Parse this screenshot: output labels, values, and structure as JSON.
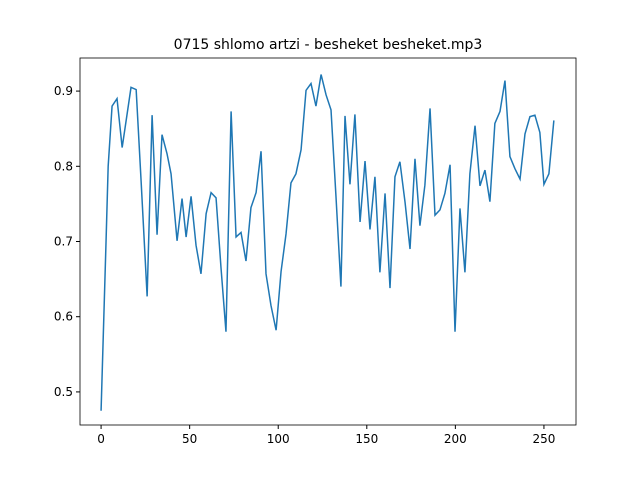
{
  "chart_data": {
    "type": "line",
    "title": "0715 shlomo artzi - besheket besheket.mp3",
    "x": [
      0,
      2.8,
      4.0,
      6.2,
      9.0,
      11.9,
      14.1,
      16.9,
      19.8,
      22.6,
      26.0,
      28.8,
      31.6,
      34.4,
      37.2,
      39.5,
      42.9,
      45.7,
      48.0,
      50.8,
      53.6,
      56.4,
      59.3,
      62.1,
      64.9,
      67.7,
      70.5,
      73.4,
      76.2,
      79.0,
      81.8,
      84.6,
      87.5,
      90.3,
      93.1,
      95.9,
      98.8,
      101.6,
      104.4,
      107.2,
      110.0,
      112.9,
      115.7,
      118.5,
      121.3,
      124.2,
      127.0,
      129.8,
      132.6,
      135.4,
      137.7,
      140.5,
      143.3,
      146.2,
      149.0,
      151.8,
      154.6,
      157.4,
      160.3,
      163.1,
      165.9,
      168.7,
      171.6,
      174.4,
      177.2,
      180.0,
      182.8,
      185.7,
      188.5,
      191.3,
      194.1,
      197.0,
      199.8,
      202.6,
      205.4,
      208.2,
      211.1,
      213.9,
      216.7,
      219.5,
      222.3,
      225.2,
      228.0,
      230.8,
      233.6,
      236.5,
      239.3,
      242.1,
      244.9,
      247.7,
      250.0,
      252.8,
      255.6
    ],
    "series": [
      {
        "name": "series",
        "color": "#1f77b4",
        "values": [
          0.475,
          0.7,
          0.8,
          0.88,
          0.89,
          0.825,
          0.86,
          0.905,
          0.902,
          0.78,
          0.627,
          0.868,
          0.709,
          0.842,
          0.817,
          0.79,
          0.701,
          0.757,
          0.706,
          0.76,
          0.695,
          0.657,
          0.737,
          0.765,
          0.758,
          0.665,
          0.58,
          0.873,
          0.706,
          0.712,
          0.674,
          0.745,
          0.765,
          0.82,
          0.657,
          0.615,
          0.582,
          0.66,
          0.71,
          0.778,
          0.79,
          0.822,
          0.901,
          0.91,
          0.88,
          0.922,
          0.895,
          0.875,
          0.76,
          0.64,
          0.867,
          0.776,
          0.869,
          0.726,
          0.807,
          0.716,
          0.786,
          0.659,
          0.764,
          0.638,
          0.786,
          0.806,
          0.752,
          0.69,
          0.81,
          0.721,
          0.775,
          0.877,
          0.735,
          0.742,
          0.764,
          0.802,
          0.58,
          0.744,
          0.659,
          0.79,
          0.854,
          0.774,
          0.795,
          0.753,
          0.857,
          0.873,
          0.914,
          0.813,
          0.797,
          0.783,
          0.843,
          0.866,
          0.868,
          0.845,
          0.776,
          0.79,
          0.861
        ]
      }
    ],
    "xlim": [
      -11.9,
      268.1
    ],
    "ylim": [
      0.456,
      0.944
    ],
    "xticks": [
      0,
      50,
      100,
      150,
      200,
      250
    ],
    "yticks": [
      0.5,
      0.6,
      0.7,
      0.8,
      0.9
    ]
  }
}
